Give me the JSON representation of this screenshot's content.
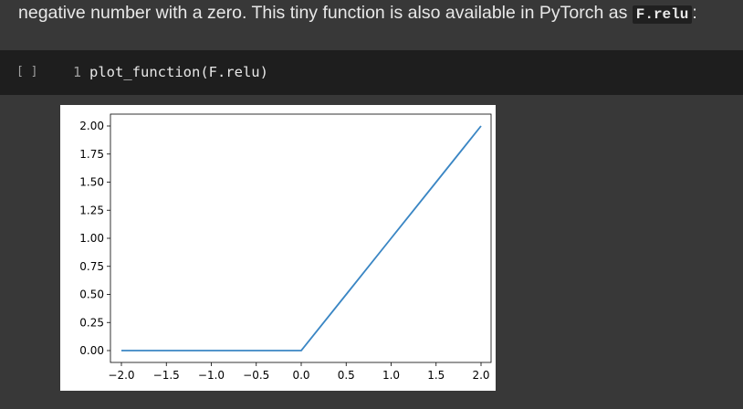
{
  "prose": {
    "text": "negative number with a zero. This tiny function is also available in PyTorch as ",
    "code": "F.relu",
    "suffix": ":"
  },
  "cell": {
    "run_label": "[ ]",
    "line_number": "1",
    "code": "plot_function(F.relu)"
  },
  "chart_data": {
    "type": "line",
    "title": "",
    "xlabel": "",
    "ylabel": "",
    "xlim": [
      -2.0,
      2.0
    ],
    "ylim": [
      0.0,
      2.0
    ],
    "xticks": [
      "−2.0",
      "−1.5",
      "−1.0",
      "−0.5",
      "0.0",
      "0.5",
      "1.0",
      "1.5",
      "2.0"
    ],
    "xtick_values": [
      -2.0,
      -1.5,
      -1.0,
      -0.5,
      0.0,
      0.5,
      1.0,
      1.5,
      2.0
    ],
    "yticks": [
      "0.00",
      "0.25",
      "0.50",
      "0.75",
      "1.00",
      "1.25",
      "1.50",
      "1.75",
      "2.00"
    ],
    "ytick_values": [
      0.0,
      0.25,
      0.5,
      0.75,
      1.0,
      1.25,
      1.5,
      1.75,
      2.0
    ],
    "grid": false,
    "series": [
      {
        "color": "#3a86c4",
        "x": [
          -2.0,
          -1.5,
          -1.0,
          -0.5,
          0.0,
          0.5,
          1.0,
          1.5,
          2.0
        ],
        "y": [
          0.0,
          0.0,
          0.0,
          0.0,
          0.0,
          0.5,
          1.0,
          1.5,
          2.0
        ]
      }
    ]
  }
}
